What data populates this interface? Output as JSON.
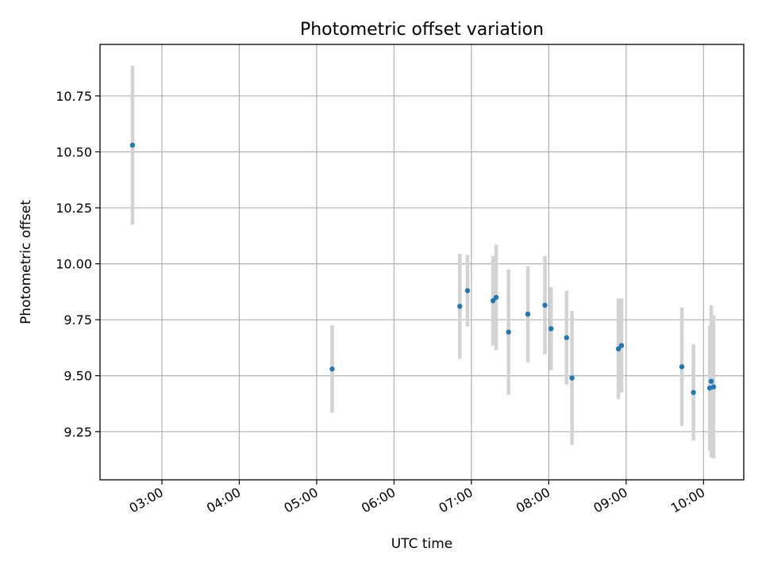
{
  "chart_data": {
    "type": "scatter",
    "title": "Photometric offset variation",
    "xlabel": "UTC time",
    "ylabel": "Photometric offset",
    "x_units": "hours UTC (decimal)",
    "xlim": [
      2.2,
      10.52
    ],
    "ylim": [
      9.035,
      10.98
    ],
    "grid": true,
    "x_ticks": [
      {
        "value": 3,
        "label": "03:00"
      },
      {
        "value": 4,
        "label": "04:00"
      },
      {
        "value": 5,
        "label": "05:00"
      },
      {
        "value": 6,
        "label": "06:00"
      },
      {
        "value": 7,
        "label": "07:00"
      },
      {
        "value": 8,
        "label": "08:00"
      },
      {
        "value": 9,
        "label": "09:00"
      },
      {
        "value": 10,
        "label": "10:00"
      }
    ],
    "y_ticks": [
      {
        "value": 9.25,
        "label": "9.25"
      },
      {
        "value": 9.5,
        "label": "9.50"
      },
      {
        "value": 9.75,
        "label": "9.75"
      },
      {
        "value": 10.0,
        "label": "10.00"
      },
      {
        "value": 10.25,
        "label": "10.25"
      },
      {
        "value": 10.5,
        "label": "10.50"
      },
      {
        "value": 10.75,
        "label": "10.75"
      }
    ],
    "marker_color": "#1f77b4",
    "errorbar_color": "#d3d3d3",
    "series": [
      {
        "name": "offset",
        "points": [
          {
            "x": 2.62,
            "y": 10.53,
            "err": 0.355
          },
          {
            "x": 5.2,
            "y": 9.53,
            "err": 0.195
          },
          {
            "x": 6.85,
            "y": 9.81,
            "err": 0.235
          },
          {
            "x": 6.95,
            "y": 9.88,
            "err": 0.16
          },
          {
            "x": 7.28,
            "y": 9.835,
            "err": 0.2
          },
          {
            "x": 7.32,
            "y": 9.85,
            "err": 0.235
          },
          {
            "x": 7.48,
            "y": 9.695,
            "err": 0.28
          },
          {
            "x": 7.73,
            "y": 9.775,
            "err": 0.215
          },
          {
            "x": 7.95,
            "y": 9.815,
            "err": 0.22
          },
          {
            "x": 8.03,
            "y": 9.71,
            "err": 0.185
          },
          {
            "x": 8.23,
            "y": 9.67,
            "err": 0.21
          },
          {
            "x": 8.3,
            "y": 9.49,
            "err": 0.3
          },
          {
            "x": 8.9,
            "y": 9.62,
            "err": 0.225
          },
          {
            "x": 8.94,
            "y": 9.635,
            "err": 0.21
          },
          {
            "x": 9.72,
            "y": 9.54,
            "err": 0.265
          },
          {
            "x": 9.87,
            "y": 9.425,
            "err": 0.215
          },
          {
            "x": 10.08,
            "y": 9.445,
            "err": 0.28
          },
          {
            "x": 10.1,
            "y": 9.475,
            "err": 0.34
          },
          {
            "x": 10.13,
            "y": 9.45,
            "err": 0.32
          }
        ]
      }
    ]
  }
}
